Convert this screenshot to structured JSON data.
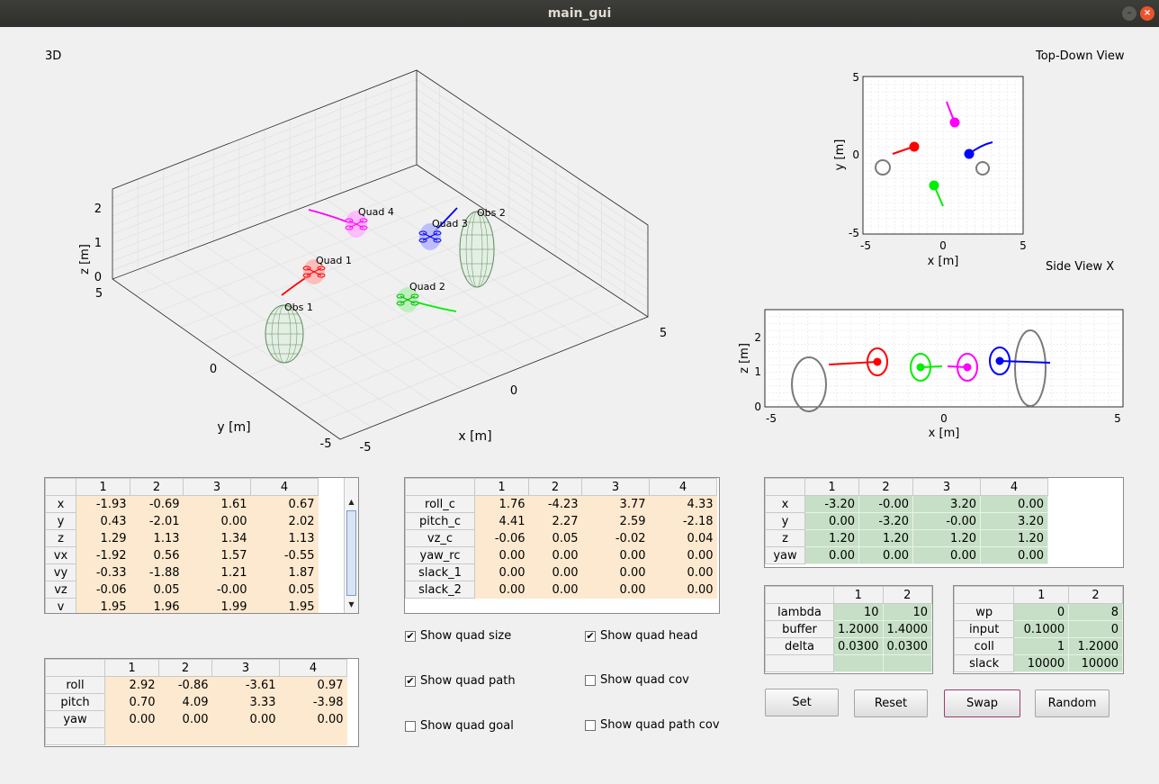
{
  "window": {
    "title": "main_gui"
  },
  "view3d": {
    "title": "3D",
    "xlabel": "x [m]",
    "ylabel": "y [m]",
    "zlabel": "z [m]",
    "xticks": [
      "-5",
      "0",
      "5"
    ],
    "yticks": [
      "-5",
      "0",
      "5"
    ],
    "zticks": [
      "0",
      "1",
      "2"
    ],
    "labels": [
      "Quad 1",
      "Quad 2",
      "Quad 3",
      "Quad 4",
      "Obs 1",
      "Obs 2"
    ]
  },
  "topdown": {
    "title": "Top-Down View",
    "xlabel": "x [m]",
    "ylabel": "y [m]",
    "xticks": [
      "-5",
      "0",
      "5"
    ],
    "yticks": [
      "5",
      "0",
      "-5"
    ]
  },
  "sideview": {
    "title": "Side View X",
    "xlabel": "x [m]",
    "ylabel": "z [m]",
    "xticks": [
      "-5",
      "0",
      "5"
    ],
    "yticks": [
      "2",
      "1",
      "0"
    ]
  },
  "colors": {
    "quad1": "#ff0000",
    "quad2": "#00ee00",
    "quad3": "#0000ff",
    "quad4": "#ff00ff",
    "obstacle": "#7a7a7a",
    "mesh": "#5d8a5d"
  },
  "state_table": {
    "columns": [
      "1",
      "2",
      "3",
      "4"
    ],
    "rows": [
      {
        "name": "x",
        "values": [
          "-1.93",
          "-0.69",
          "1.61",
          "0.67"
        ]
      },
      {
        "name": "y",
        "values": [
          "0.43",
          "-2.01",
          "0.00",
          "2.02"
        ]
      },
      {
        "name": "z",
        "values": [
          "1.29",
          "1.13",
          "1.34",
          "1.13"
        ]
      },
      {
        "name": "vx",
        "values": [
          "-1.92",
          "0.56",
          "1.57",
          "-0.55"
        ]
      },
      {
        "name": "vy",
        "values": [
          "-0.33",
          "-1.88",
          "1.21",
          "1.87"
        ]
      },
      {
        "name": "vz",
        "values": [
          "-0.06",
          "0.05",
          "-0.00",
          "0.05"
        ]
      },
      {
        "name": "v",
        "values": [
          "1.95",
          "1.96",
          "1.99",
          "1.95"
        ]
      }
    ]
  },
  "attitude_table": {
    "columns": [
      "1",
      "2",
      "3",
      "4"
    ],
    "rows": [
      {
        "name": "roll",
        "values": [
          "2.92",
          "-0.86",
          "-3.61",
          "0.97"
        ]
      },
      {
        "name": "pitch",
        "values": [
          "0.70",
          "4.09",
          "3.33",
          "-3.98"
        ]
      },
      {
        "name": "yaw",
        "values": [
          "0.00",
          "0.00",
          "0.00",
          "0.00"
        ]
      },
      {
        "name": "",
        "values": [
          "",
          "",
          "",
          ""
        ]
      }
    ]
  },
  "control_table": {
    "columns": [
      "1",
      "2",
      "3",
      "4"
    ],
    "rows": [
      {
        "name": "roll_c",
        "values": [
          "1.76",
          "-4.23",
          "3.77",
          "4.33"
        ]
      },
      {
        "name": "pitch_c",
        "values": [
          "4.41",
          "2.27",
          "2.59",
          "-2.18"
        ]
      },
      {
        "name": "vz_c",
        "values": [
          "-0.06",
          "0.05",
          "-0.02",
          "0.04"
        ]
      },
      {
        "name": "yaw_rc",
        "values": [
          "0.00",
          "0.00",
          "0.00",
          "0.00"
        ]
      },
      {
        "name": "slack_1",
        "values": [
          "0.00",
          "0.00",
          "0.00",
          "0.00"
        ]
      },
      {
        "name": "slack_2",
        "values": [
          "0.00",
          "0.00",
          "0.00",
          "0.00"
        ]
      }
    ]
  },
  "goal_table": {
    "columns": [
      "1",
      "2",
      "3",
      "4"
    ],
    "rows": [
      {
        "name": "x",
        "values": [
          "-3.20",
          "-0.00",
          "3.20",
          "0.00"
        ]
      },
      {
        "name": "y",
        "values": [
          "0.00",
          "-3.20",
          "-0.00",
          "3.20"
        ]
      },
      {
        "name": "z",
        "values": [
          "1.20",
          "1.20",
          "1.20",
          "1.20"
        ]
      },
      {
        "name": "yaw",
        "values": [
          "0.00",
          "0.00",
          "0.00",
          "0.00"
        ]
      }
    ]
  },
  "param_table_a": {
    "columns": [
      "1",
      "2"
    ],
    "rows": [
      {
        "name": "lambda",
        "values": [
          "10",
          "10"
        ]
      },
      {
        "name": "buffer",
        "values": [
          "1.2000",
          "1.4000"
        ]
      },
      {
        "name": "delta",
        "values": [
          "0.0300",
          "0.0300"
        ]
      },
      {
        "name": "",
        "values": [
          "",
          ""
        ]
      }
    ]
  },
  "param_table_b": {
    "columns": [
      "1",
      "2"
    ],
    "rows": [
      {
        "name": "wp",
        "values": [
          "0",
          "8"
        ]
      },
      {
        "name": "input",
        "values": [
          "0.1000",
          "0"
        ]
      },
      {
        "name": "coll",
        "values": [
          "1",
          "1.2000"
        ]
      },
      {
        "name": "slack",
        "values": [
          "10000",
          "10000"
        ]
      }
    ]
  },
  "options": [
    {
      "id": "size",
      "label": "Show quad size",
      "checked": true
    },
    {
      "id": "head",
      "label": "Show quad head",
      "checked": true
    },
    {
      "id": "path",
      "label": "Show quad path",
      "checked": true
    },
    {
      "id": "cov",
      "label": "Show quad cov",
      "checked": false
    },
    {
      "id": "goal",
      "label": "Show quad goal",
      "checked": false
    },
    {
      "id": "pathcov",
      "label": "Show quad path cov",
      "checked": false
    }
  ],
  "buttons": {
    "set": "Set",
    "reset": "Reset",
    "swap": "Swap",
    "random": "Random"
  }
}
